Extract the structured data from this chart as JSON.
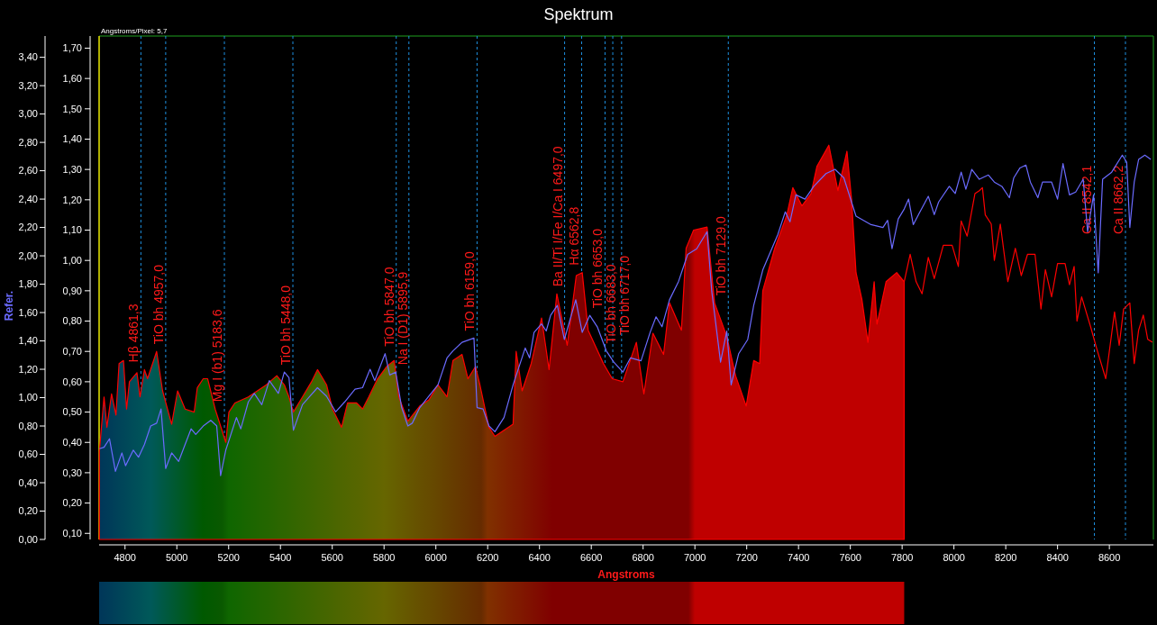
{
  "chart_data": {
    "type": "line",
    "title": "Spektrum",
    "xlabel": "Angstroms",
    "y2label": "Refer.",
    "annotations": [
      "Angstroms/Pixel: 5,7"
    ],
    "xlim": [
      4700,
      8770
    ],
    "xticks": [
      4800,
      5000,
      5200,
      5400,
      5600,
      5800,
      6000,
      6200,
      6400,
      6600,
      6800,
      7000,
      7200,
      7400,
      7600,
      7800,
      8000,
      8200,
      8400,
      8600
    ],
    "ylim": [
      0.08,
      1.74
    ],
    "yticks": [
      {
        "value": 0.1,
        "label": "0,10"
      },
      {
        "value": 0.2,
        "label": "0,20"
      },
      {
        "value": 0.3,
        "label": "0,30"
      },
      {
        "value": 0.4,
        "label": "0,40"
      },
      {
        "value": 0.5,
        "label": "0,50"
      },
      {
        "value": 0.6,
        "label": "0,60"
      },
      {
        "value": 0.7,
        "label": "0,70"
      },
      {
        "value": 0.8,
        "label": "0,80"
      },
      {
        "value": 0.9,
        "label": "0,90"
      },
      {
        "value": 1.0,
        "label": "1,00"
      },
      {
        "value": 1.1,
        "label": "1,10"
      },
      {
        "value": 1.2,
        "label": "1,20"
      },
      {
        "value": 1.3,
        "label": "1,30"
      },
      {
        "value": 1.4,
        "label": "1,40"
      },
      {
        "value": 1.5,
        "label": "1,50"
      },
      {
        "value": 1.6,
        "label": "1,60"
      },
      {
        "value": 1.7,
        "label": "1,70"
      }
    ],
    "y2lim": [
      0,
      3.55
    ],
    "y2ticks": [
      {
        "value": 0,
        "label": "0,00"
      },
      {
        "value": 0.2,
        "label": "0,20"
      },
      {
        "value": 0.4,
        "label": "0,40"
      },
      {
        "value": 0.6,
        "label": "0,60"
      },
      {
        "value": 0.8,
        "label": "0,80"
      },
      {
        "value": 1.0,
        "label": "1,00"
      },
      {
        "value": 1.2,
        "label": "1,20"
      },
      {
        "value": 1.4,
        "label": "1,40"
      },
      {
        "value": 1.6,
        "label": "1,60"
      },
      {
        "value": 1.8,
        "label": "1,80"
      },
      {
        "value": 2.0,
        "label": "2,00"
      },
      {
        "value": 2.2,
        "label": "2,20"
      },
      {
        "value": 2.4,
        "label": "2,40"
      },
      {
        "value": 2.6,
        "label": "2,60"
      },
      {
        "value": 2.8,
        "label": "2,80"
      },
      {
        "value": 3.0,
        "label": "3,00"
      },
      {
        "value": 3.2,
        "label": "3,20"
      },
      {
        "value": 3.4,
        "label": "3,40"
      }
    ],
    "grid": false,
    "line_style": "solid",
    "series": [
      {
        "type": "area",
        "color": "#ff0000",
        "x": [
          4701,
          4719,
          4730,
          4748,
          4765,
          4777,
          4794,
          4806,
          4817,
          4846,
          4858,
          4875,
          4887,
          4922,
          4945,
          4980,
          5003,
          5032,
          5067,
          5079,
          5102,
          5119,
          5148,
          5189,
          5201,
          5224,
          5276,
          5311,
          5346,
          5386,
          5415,
          5433,
          5450,
          5485,
          5520,
          5543,
          5578,
          5601,
          5636,
          5659,
          5694,
          5717,
          5741,
          5775,
          5810,
          5839,
          5857,
          5892,
          5938,
          5973,
          6008,
          6043,
          6066,
          6101,
          6124,
          6153,
          6170,
          6205,
          6228,
          6263,
          6298,
          6310,
          6333,
          6368,
          6408,
          6437,
          6467,
          6507,
          6542,
          6565,
          6588,
          6647,
          6681,
          6722,
          6774,
          6803,
          6838,
          6879,
          6902,
          6948,
          6966,
          6995,
          7047,
          7076,
          7123,
          7157,
          7198,
          7227,
          7250,
          7262,
          7308,
          7355,
          7378,
          7413,
          7448,
          7471,
          7517,
          7552,
          7587,
          7605,
          7622,
          7645,
          7668,
          7692,
          7703,
          7738,
          7779,
          7808
        ],
        "values": [
          0.37,
          0.55,
          0.45,
          0.56,
          0.49,
          0.66,
          0.67,
          0.51,
          0.6,
          0.63,
          0.55,
          0.64,
          0.61,
          0.7,
          0.57,
          0.46,
          0.57,
          0.51,
          0.5,
          0.58,
          0.61,
          0.61,
          0.51,
          0.4,
          0.5,
          0.53,
          0.55,
          0.57,
          0.59,
          0.62,
          0.59,
          0.55,
          0.5,
          0.55,
          0.6,
          0.64,
          0.59,
          0.51,
          0.45,
          0.53,
          0.53,
          0.51,
          0.55,
          0.61,
          0.65,
          0.67,
          0.55,
          0.47,
          0.52,
          0.54,
          0.59,
          0.55,
          0.67,
          0.69,
          0.61,
          0.65,
          0.59,
          0.45,
          0.42,
          0.44,
          0.46,
          0.7,
          0.57,
          0.66,
          0.81,
          0.64,
          0.89,
          0.72,
          0.95,
          0.96,
          0.77,
          0.66,
          0.61,
          0.6,
          0.73,
          0.56,
          0.76,
          0.69,
          0.86,
          0.77,
          1.04,
          1.1,
          1.11,
          0.86,
          0.75,
          0.62,
          0.52,
          0.67,
          0.66,
          0.9,
          1.04,
          1.15,
          1.24,
          1.18,
          1.22,
          1.31,
          1.38,
          1.23,
          1.36,
          1.2,
          0.96,
          0.87,
          0.73,
          0.93,
          0.79,
          0.93,
          0.96,
          0.93
        ]
      },
      {
        "color": "#ff0000",
        "x": [
          7808,
          7831,
          7854,
          7877,
          7901,
          7924,
          7959,
          7993,
          8017,
          8028,
          8051,
          8081,
          8098,
          8110,
          8121,
          8144,
          8156,
          8179,
          8208,
          8237,
          8260,
          8284,
          8313,
          8336,
          8353,
          8377,
          8400,
          8429,
          8446,
          8464,
          8475,
          8493,
          8528,
          8551,
          8586,
          8620,
          8638,
          8655,
          8679,
          8696,
          8713,
          8731,
          8748,
          8766
        ],
        "values": [
          0.93,
          1.02,
          0.93,
          0.89,
          1.01,
          0.94,
          1.05,
          1.05,
          0.98,
          1.13,
          1.08,
          1.22,
          1.23,
          1.24,
          1.15,
          1.12,
          1.0,
          1.12,
          0.93,
          1.04,
          0.95,
          1.02,
          1.02,
          0.84,
          0.97,
          0.88,
          0.99,
          0.99,
          0.92,
          0.98,
          0.8,
          0.88,
          0.78,
          0.71,
          0.61,
          0.83,
          0.72,
          0.84,
          0.86,
          0.66,
          0.77,
          0.82,
          0.74,
          0.73
        ]
      },
      {
        "axis": "y2",
        "color": "#6b6bff",
        "x": [
          4701,
          4719,
          4740,
          4763,
          4788,
          4802,
          4832,
          4852,
          4875,
          4899,
          4922,
          4939,
          4957,
          4980,
          5007,
          5032,
          5055,
          5073,
          5102,
          5131,
          5154,
          5169,
          5189,
          5230,
          5247,
          5276,
          5299,
          5328,
          5357,
          5392,
          5415,
          5433,
          5450,
          5485,
          5514,
          5543,
          5578,
          5613,
          5648,
          5688,
          5717,
          5746,
          5764,
          5804,
          5822,
          5845,
          5868,
          5892,
          5909,
          5938,
          5973,
          6008,
          6043,
          6066,
          6101,
          6147,
          6159,
          6182,
          6205,
          6228,
          6263,
          6298,
          6345,
          6362,
          6379,
          6408,
          6426,
          6443,
          6469,
          6496,
          6540,
          6565,
          6594,
          6623,
          6658,
          6687,
          6722,
          6751,
          6792,
          6827,
          6850,
          6873,
          6902,
          6937,
          6972,
          7007,
          7047,
          7065,
          7099,
          7123,
          7140,
          7169,
          7204,
          7227,
          7262,
          7320,
          7349,
          7367,
          7390,
          7425,
          7459,
          7506,
          7541,
          7575,
          7622,
          7680,
          7726,
          7744,
          7761,
          7785,
          7808,
          7825,
          7843,
          7866,
          7901,
          7924,
          7941,
          7982,
          8005,
          8028,
          8046,
          8069,
          8098,
          8133,
          8156,
          8185,
          8214,
          8231,
          8255,
          8278,
          8295,
          8324,
          8342,
          8377,
          8400,
          8421,
          8446,
          8470,
          8499,
          8516,
          8539,
          8557,
          8574,
          8609,
          8650,
          8667,
          8679,
          8696,
          8713,
          8737,
          8760
        ],
        "values": [
          0.64,
          0.65,
          0.71,
          0.48,
          0.61,
          0.52,
          0.63,
          0.58,
          0.67,
          0.8,
          0.82,
          0.92,
          0.5,
          0.61,
          0.55,
          0.67,
          0.78,
          0.74,
          0.8,
          0.84,
          0.8,
          0.45,
          0.63,
          0.86,
          0.78,
          0.97,
          1.03,
          0.95,
          1.12,
          1.03,
          1.18,
          1.14,
          0.77,
          0.95,
          1.01,
          1.07,
          1.01,
          0.9,
          0.97,
          1.06,
          1.07,
          1.2,
          1.12,
          1.31,
          1.16,
          1.18,
          0.93,
          0.8,
          0.82,
          0.93,
          1.01,
          1.09,
          1.28,
          1.33,
          1.39,
          1.42,
          0.93,
          0.92,
          0.8,
          0.76,
          0.86,
          1.09,
          1.35,
          1.28,
          1.46,
          1.52,
          1.47,
          1.58,
          1.65,
          1.41,
          1.69,
          1.46,
          1.58,
          1.5,
          1.33,
          1.25,
          1.18,
          1.28,
          1.26,
          1.46,
          1.57,
          1.5,
          1.69,
          1.82,
          2.01,
          2.05,
          2.17,
          1.75,
          1.25,
          1.47,
          1.09,
          1.31,
          1.41,
          1.65,
          1.9,
          2.15,
          2.31,
          2.24,
          2.43,
          2.4,
          2.49,
          2.58,
          2.61,
          2.55,
          2.28,
          2.22,
          2.2,
          2.25,
          2.05,
          2.26,
          2.33,
          2.4,
          2.22,
          2.3,
          2.42,
          2.29,
          2.38,
          2.49,
          2.44,
          2.59,
          2.47,
          2.61,
          2.54,
          2.57,
          2.52,
          2.49,
          2.41,
          2.55,
          2.62,
          2.64,
          2.52,
          2.41,
          2.52,
          2.52,
          2.4,
          2.65,
          2.43,
          2.45,
          2.54,
          2.17,
          2.43,
          1.88,
          2.54,
          2.59,
          2.71,
          2.66,
          2.2,
          2.52,
          2.68,
          2.71,
          2.68
        ]
      }
    ],
    "ref_lines": [
      {
        "axis": "x",
        "value": 4861.3,
        "label": "Hβ 4861,3",
        "color": "#1e90e0",
        "line_style": "dashed"
      },
      {
        "axis": "x",
        "value": 4957,
        "label": "TiO bh 4957,0",
        "color": "#1e90e0",
        "line_style": "dashed"
      },
      {
        "axis": "x",
        "value": 5183.6,
        "label": "Mg I (b1) 5183,6",
        "color": "#1e90e0",
        "line_style": "dashed"
      },
      {
        "axis": "x",
        "value": 5448,
        "label": "TiO bh 5448,0",
        "color": "#1e90e0",
        "line_style": "dashed"
      },
      {
        "axis": "x",
        "value": 5847,
        "label": "TiO bh 5847,0",
        "color": "#1e90e0",
        "line_style": "dashed"
      },
      {
        "axis": "x",
        "value": 5895.9,
        "label": "Na I (D1) 5895,9",
        "color": "#1e90e0",
        "line_style": "dashed"
      },
      {
        "axis": "x",
        "value": 6159,
        "label": "TiO bh 6159,0",
        "color": "#1e90e0",
        "line_style": "dashed"
      },
      {
        "axis": "x",
        "value": 6497,
        "label": "Ba II/Ti I/Fe I/Ca I 6497,0",
        "color": "#1e90e0",
        "line_style": "dashed"
      },
      {
        "axis": "x",
        "value": 6562.8,
        "label": "Hα 6562,8",
        "color": "#1e90e0",
        "line_style": "dashed"
      },
      {
        "axis": "x",
        "value": 6653,
        "label": "TiO bh 6653,0",
        "color": "#1e90e0",
        "line_style": "dashed"
      },
      {
        "axis": "x",
        "value": 6683,
        "label": "TiO bh 6683,0",
        "color": "#1e90e0",
        "line_style": "dashed"
      },
      {
        "axis": "x",
        "value": 6717,
        "label": "TiO bh 6717,0",
        "color": "#1e90e0",
        "line_style": "dashed"
      },
      {
        "axis": "x",
        "value": 7129,
        "label": "TiO bh 7129,0",
        "color": "#1e90e0",
        "line_style": "dashed"
      },
      {
        "axis": "x",
        "value": 8542.1,
        "label": "Ca II 8542,1",
        "color": "#1e90e0",
        "line_style": "dashed"
      },
      {
        "axis": "x",
        "value": 8662.2,
        "label": "Ca II 8662,2",
        "color": "#1e90e0",
        "line_style": "dashed"
      }
    ]
  }
}
